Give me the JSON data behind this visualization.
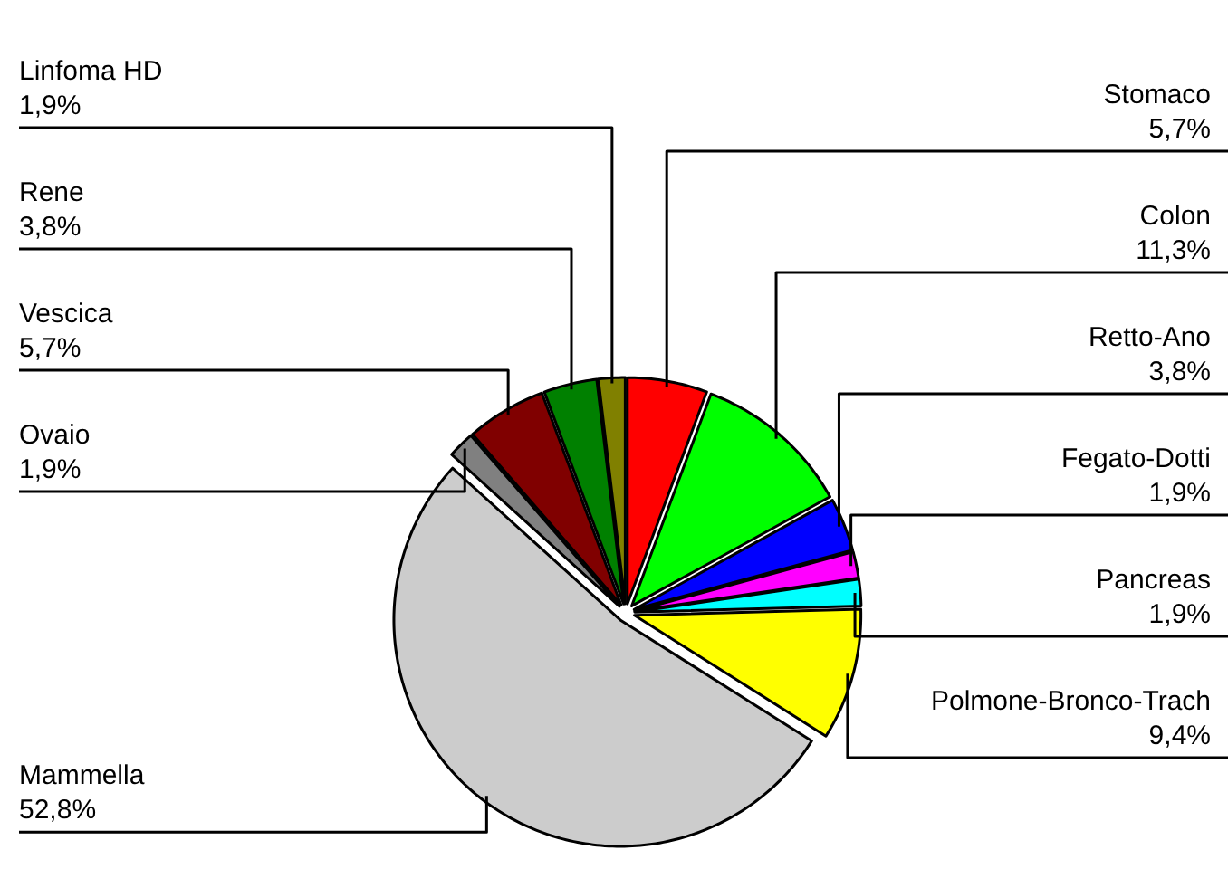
{
  "chart_data": {
    "type": "pie",
    "categories": [
      "Stomaco",
      "Colon",
      "Retto-Ano",
      "Fegato-Dotti",
      "Pancreas",
      "Polmone-Bronco-Trach",
      "Mammella",
      "Ovaio",
      "Vescica",
      "Rene",
      "Linfoma HD"
    ],
    "values": [
      5.7,
      11.3,
      3.8,
      1.9,
      1.9,
      9.4,
      52.8,
      1.9,
      5.7,
      3.8,
      1.9
    ],
    "colors": [
      "#ff0000",
      "#00ff00",
      "#0000ff",
      "#ff00ff",
      "#00ffff",
      "#ffff00",
      "#cccccc",
      "#808080",
      "#800000",
      "#008000",
      "#808000"
    ],
    "value_labels": [
      "5,7%",
      "11,3%",
      "3,8%",
      "1,9%",
      "1,9%",
      "9,4%",
      "52,8%",
      "1,9%",
      "5,7%",
      "3,8%",
      "1,9%"
    ]
  }
}
